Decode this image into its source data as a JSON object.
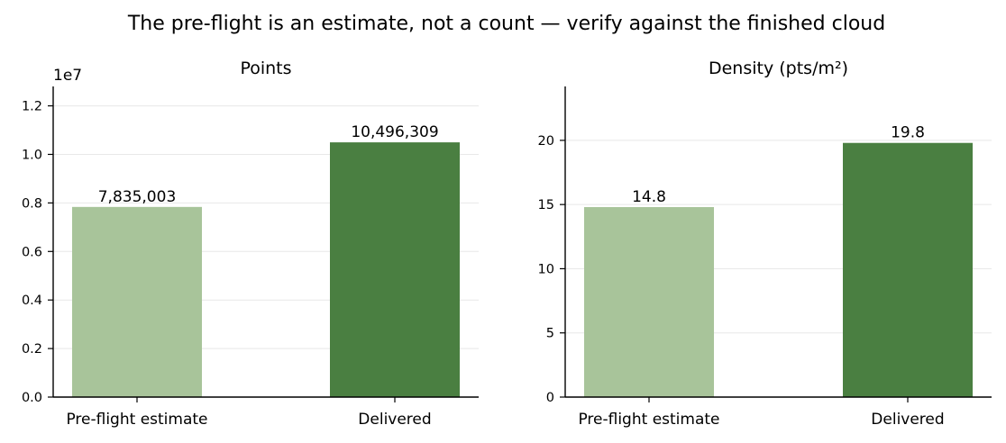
{
  "figure_title": "The pre-flight is an estimate, not a count — verify against the finished cloud",
  "colors": {
    "estimate": "#a8c49a",
    "delivered": "#4a7f41",
    "grid": "#e8e8e8",
    "axis": "#000000"
  },
  "chart_data": [
    {
      "type": "bar",
      "title": "Points",
      "offset_text": "1e7",
      "categories": [
        "Pre-flight estimate",
        "Delivered"
      ],
      "values": [
        7835003,
        10496309
      ],
      "value_labels": [
        "7,835,003",
        "10,496,309"
      ],
      "ylim": [
        0,
        12800000
      ],
      "yticks": [
        0,
        2000000,
        4000000,
        6000000,
        8000000,
        10000000,
        12000000
      ],
      "ytick_labels": [
        "0.0",
        "0.2",
        "0.4",
        "0.6",
        "0.8",
        "1.0",
        "1.2"
      ],
      "xlabel": "",
      "ylabel": "",
      "grid": "y"
    },
    {
      "type": "bar",
      "title": "Density (pts/m²)",
      "categories": [
        "Pre-flight estimate",
        "Delivered"
      ],
      "values": [
        14.8,
        19.8
      ],
      "value_labels": [
        "14.8",
        "19.8"
      ],
      "ylim": [
        0,
        24.2
      ],
      "yticks": [
        0,
        5,
        10,
        15,
        20
      ],
      "ytick_labels": [
        "0",
        "5",
        "10",
        "15",
        "20"
      ],
      "xlabel": "",
      "ylabel": "",
      "grid": "y"
    }
  ]
}
